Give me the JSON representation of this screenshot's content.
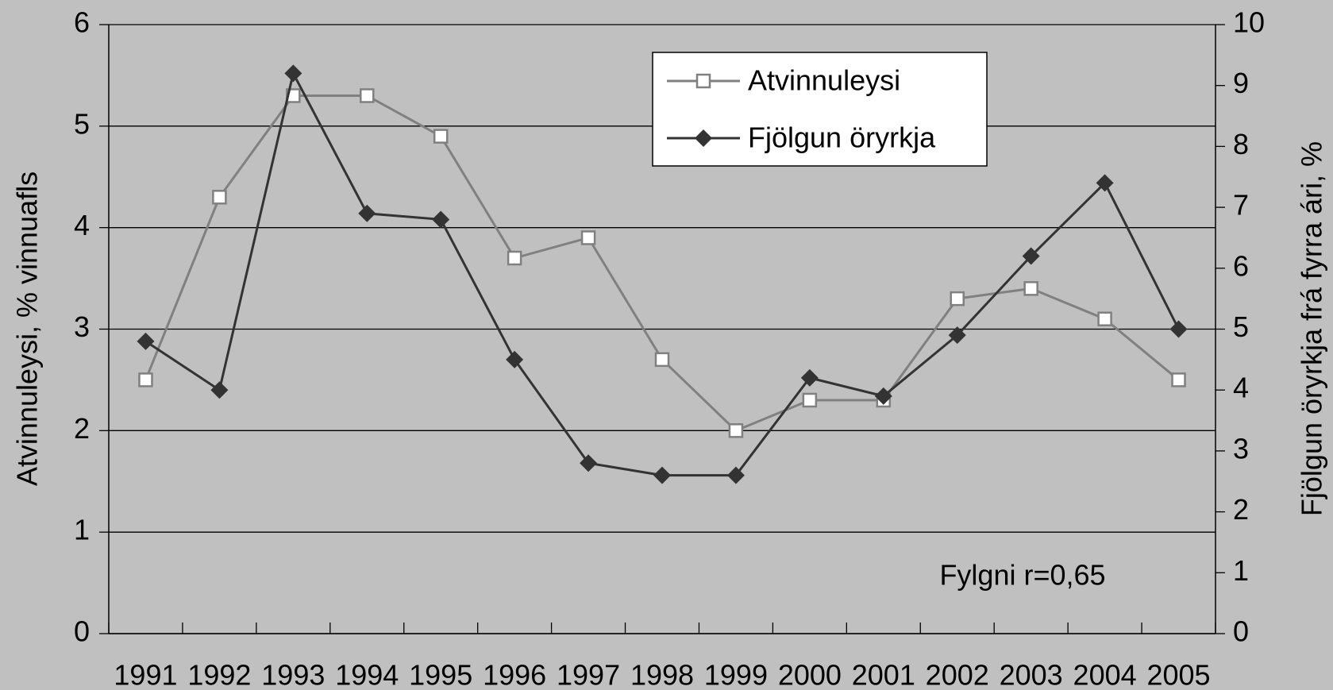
{
  "chart_data": {
    "type": "line",
    "categories": [
      "1991",
      "1992",
      "1993",
      "1994",
      "1995",
      "1996",
      "1997",
      "1998",
      "1999",
      "2000",
      "2001",
      "2002",
      "2003",
      "2004",
      "2005"
    ],
    "series": [
      {
        "name": "Atvinnuleysi",
        "color": "#808080",
        "marker": "square",
        "axis": "y",
        "values": [
          2.5,
          4.3,
          5.3,
          5.3,
          4.9,
          3.7,
          3.9,
          2.7,
          2.0,
          2.3,
          2.3,
          3.3,
          3.4,
          3.1,
          2.5
        ]
      },
      {
        "name": "Fjölgun öryrkja",
        "color": "#333333",
        "marker": "diamond",
        "axis": "y2",
        "values": [
          4.8,
          4.0,
          9.2,
          6.9,
          6.8,
          4.5,
          2.8,
          2.6,
          2.6,
          4.2,
          3.9,
          4.9,
          6.2,
          7.4,
          5.0
        ]
      }
    ],
    "ylabel": "Atvinnuleysi, % vinnuafls",
    "y2label": "Fjölgun öryrkja frá fyrra ári, %",
    "ylim": [
      0,
      6
    ],
    "yticks": [
      0,
      1,
      2,
      3,
      4,
      5,
      6
    ],
    "y2lim": [
      0,
      10
    ],
    "y2ticks": [
      0,
      1,
      2,
      3,
      4,
      5,
      6,
      7,
      8,
      9,
      10
    ],
    "grid": true,
    "legend": "upper center",
    "annotation": "Fylgni r=0,65"
  }
}
